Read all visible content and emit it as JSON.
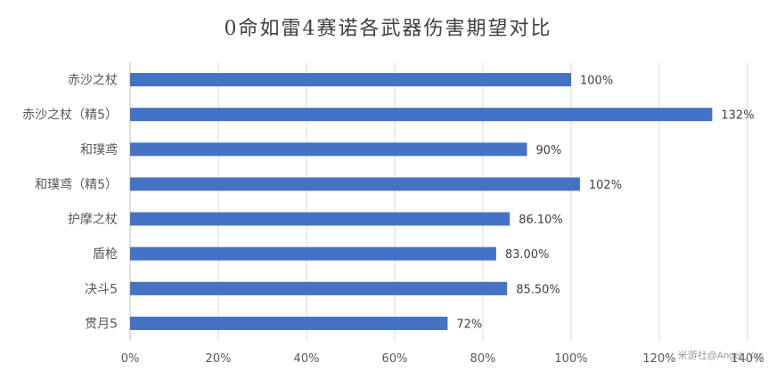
{
  "chart_data": {
    "type": "bar",
    "orientation": "horizontal",
    "title": "0命如雷4赛诺各武器伤害期望对比",
    "categories": [
      "赤沙之杖",
      "赤沙之杖（精5）",
      "和璞鸢",
      "和璞鸢（精5）",
      "护摩之杖",
      "盾枪",
      "决斗5",
      "贯月5"
    ],
    "values": [
      100,
      132,
      90,
      102,
      86.1,
      83.0,
      85.5,
      72
    ],
    "data_labels": [
      "100%",
      "132%",
      "90%",
      "102%",
      "86.10%",
      "83.00%",
      "85.50%",
      "72%"
    ],
    "xlim": [
      0,
      140
    ],
    "x_ticks": [
      0,
      20,
      40,
      60,
      80,
      100,
      120,
      140
    ],
    "x_tick_labels": [
      "0%",
      "20%",
      "40%",
      "60%",
      "80%",
      "100%",
      "120%",
      "140%"
    ],
    "grid": "vertical",
    "legend": "none",
    "bar_color": "#4472c4"
  },
  "watermark": "米游社@Angel_Yes"
}
